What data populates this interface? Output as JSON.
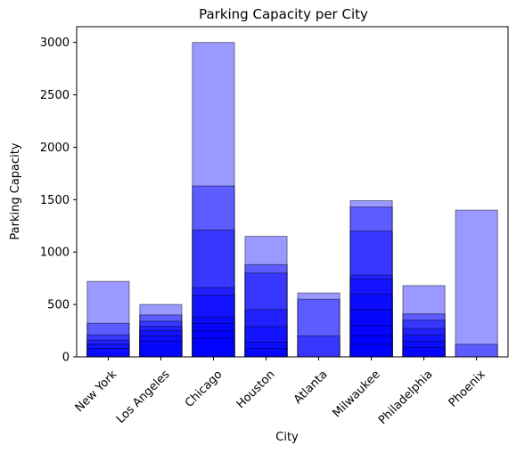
{
  "chart_data": {
    "type": "bar",
    "title": "Parking Capacity per City",
    "xlabel": "City",
    "ylabel": "Parking Capacity",
    "ylim": [
      0,
      3150
    ],
    "yticks": [
      0,
      500,
      1000,
      1500,
      2000,
      2500,
      3000
    ],
    "grid": false,
    "bar_color": "#0000ff",
    "bar_alpha": 0.4,
    "edge_color": "#000000",
    "categories": [
      "New York",
      "Los Angeles",
      "Chicago",
      "Houston",
      "Atlanta",
      "Milwaukee",
      "Philadelphia",
      "Phoenix"
    ],
    "stacked_values": [
      [
        720,
        320,
        210,
        160,
        120,
        80
      ],
      [
        500,
        400,
        340,
        290,
        250,
        200,
        150
      ],
      [
        3000,
        1630,
        1210,
        660,
        590,
        380,
        320,
        250,
        180
      ],
      [
        1150,
        880,
        800,
        450,
        290,
        140,
        80
      ],
      [
        610,
        550,
        200
      ],
      [
        1490,
        1430,
        1200,
        780,
        740,
        600,
        450,
        300,
        200,
        120
      ],
      [
        680,
        410,
        350,
        270,
        210,
        150,
        90
      ],
      [
        1400,
        120
      ]
    ]
  }
}
